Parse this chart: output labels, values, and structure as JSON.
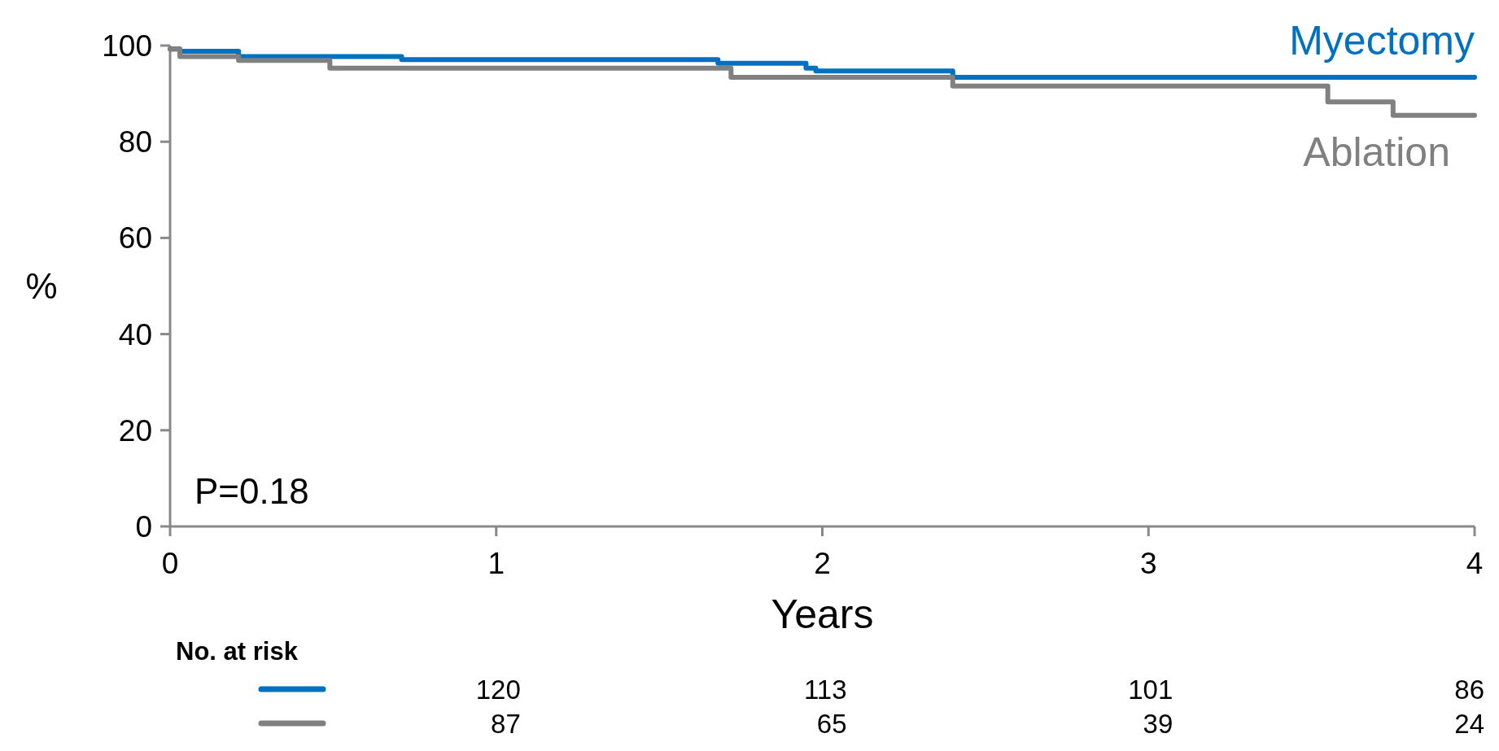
{
  "chart_data": {
    "type": "step",
    "xlabel": "Years",
    "ylabel": "%",
    "xlim": [
      0,
      4
    ],
    "xticks": [
      0,
      1,
      2,
      3,
      4
    ],
    "ylim": [
      0,
      100
    ],
    "yticks": [
      0,
      20,
      40,
      60,
      80,
      100
    ],
    "grid": false,
    "line_style": "solid",
    "marker": "none",
    "series": [
      {
        "name": "Myectomy",
        "color": "#0070c0",
        "x": [
          0,
          0.03,
          0.21,
          0.71,
          1.68,
          1.95,
          1.98,
          2.4,
          4
        ],
        "values": [
          99.3,
          98.8,
          97.7,
          97.1,
          96.3,
          95.3,
          94.7,
          93.4,
          93.4
        ]
      },
      {
        "name": "Ablation",
        "color": "#808080",
        "x": [
          0,
          0.03,
          0.21,
          0.49,
          1.72,
          2.4,
          3.55,
          3.75,
          4
        ],
        "values": [
          99.3,
          97.7,
          96.9,
          95.3,
          93.4,
          91.6,
          88.3,
          85.5,
          85.5
        ]
      }
    ],
    "annotations": [
      "P=0.18",
      "No. at risk",
      "120",
      "113",
      "101",
      "86",
      "87",
      "65",
      "39",
      "24"
    ]
  }
}
